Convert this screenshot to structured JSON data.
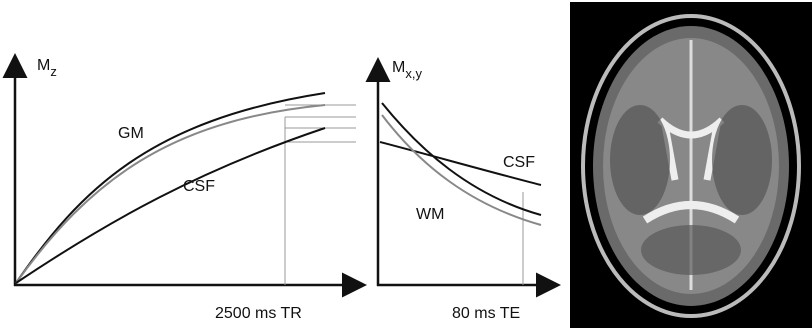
{
  "left_plot": {
    "y_label": "M",
    "y_label_sub": "z",
    "curve_labels": [
      "GM",
      "CSF"
    ],
    "x_marker": "2500 ms TR"
  },
  "right_plot": {
    "y_label": "M",
    "y_label_sub": "x,y",
    "curve_labels": [
      "CSF",
      "WM"
    ],
    "x_marker": "80 ms TE"
  }
}
